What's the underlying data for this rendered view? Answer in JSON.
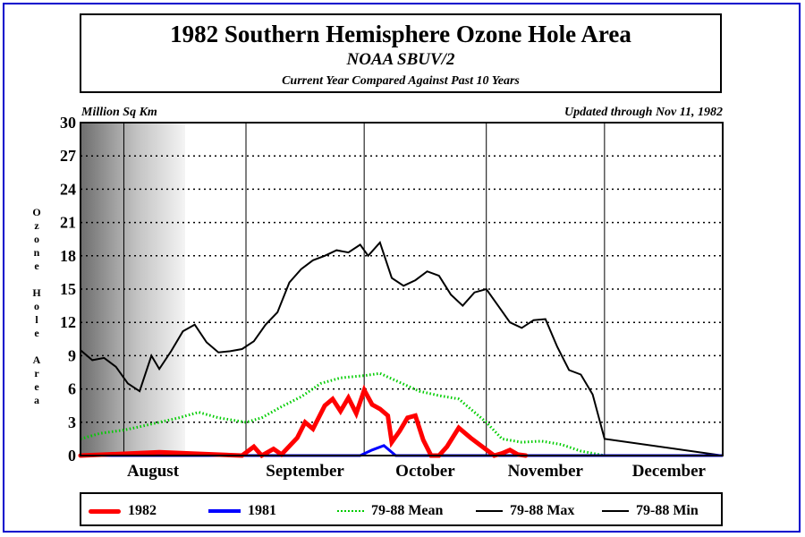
{
  "header": {
    "title": "1982 Southern Hemisphere Ozone Hole Area",
    "subtitle": "NOAA SBUV/2",
    "caption": "Current Year Compared Against Past 10 Years"
  },
  "units_label": "Million Sq Km",
  "updated_label": "Updated through Nov 11, 1982",
  "colors": {
    "frame": "#0000cc",
    "y1982": "#ff0000",
    "y1981": "#0000ff",
    "mean": "#00cc00",
    "max": "#000000",
    "min": "#000000"
  },
  "chart_data": {
    "type": "line",
    "title": "1982 Southern Hemisphere Ozone Hole Area",
    "subtitle": "NOAA SBUV/2",
    "ylabel": "Ozone Hole Area",
    "yunits": "Million Sq Km",
    "ylim": [
      0,
      30
    ],
    "yticks": [
      0,
      3,
      6,
      9,
      12,
      15,
      18,
      21,
      24,
      27,
      30
    ],
    "x_domain_days_note": "",
    "xlim": [
      "Jul 21",
      "Dec 31"
    ],
    "month_labels": [
      "August",
      "September",
      "October",
      "November",
      "December"
    ],
    "month_boundaries": [
      "Aug 1",
      "Sep 1",
      "Oct 1",
      "Nov 1",
      "Dec 1"
    ],
    "grid": true,
    "legend_position": "bottom",
    "series": [
      {
        "name": "1982",
        "style": "thick solid red",
        "x": [
          "Jul 21",
          "Aug 10",
          "Aug 31",
          "Sep 3",
          "Sep 5",
          "Sep 8",
          "Sep 10",
          "Sep 14",
          "Sep 16",
          "Sep 18",
          "Sep 21",
          "Sep 23",
          "Sep 25",
          "Sep 27",
          "Sep 29",
          "Oct 1",
          "Oct 3",
          "Oct 5",
          "Oct 7",
          "Oct 8",
          "Oct 10",
          "Oct 12",
          "Oct 14",
          "Oct 16",
          "Oct 18",
          "Oct 20",
          "Oct 22",
          "Oct 25",
          "Oct 28",
          "Oct 31",
          "Nov 3",
          "Nov 5",
          "Nov 7",
          "Nov 9",
          "Nov 11"
        ],
        "values": [
          0,
          0.3,
          0,
          0.8,
          0,
          0.6,
          0.1,
          1.6,
          3.0,
          2.4,
          4.5,
          5.1,
          4.0,
          5.2,
          3.8,
          5.9,
          4.6,
          4.2,
          3.6,
          1.2,
          2.2,
          3.4,
          3.6,
          1.4,
          0,
          0,
          0.8,
          2.5,
          1.6,
          0.8,
          0,
          0.2,
          0.5,
          0.1,
          0
        ]
      },
      {
        "name": "1981",
        "style": "thick solid blue",
        "x": [
          "Jul 21",
          "Sep 30",
          "Oct 3",
          "Oct 6",
          "Oct 9",
          "Dec 31"
        ],
        "values": [
          0,
          0,
          0.5,
          0.9,
          0,
          0
        ]
      },
      {
        "name": "79-88 Mean",
        "style": "dotted green",
        "x": [
          "Jul 21",
          "Jul 26",
          "Aug 1",
          "Aug 5",
          "Aug 10",
          "Aug 15",
          "Aug 20",
          "Aug 25",
          "Sep 1",
          "Sep 5",
          "Sep 10",
          "Sep 15",
          "Sep 20",
          "Sep 25",
          "Oct 1",
          "Oct 5",
          "Oct 10",
          "Oct 15",
          "Oct 20",
          "Oct 25",
          "Nov 1",
          "Nov 5",
          "Nov 10",
          "Nov 15",
          "Nov 20",
          "Nov 25",
          "Dec 1",
          "Dec 5",
          "Dec 31"
        ],
        "values": [
          1.5,
          2.0,
          2.3,
          2.6,
          3.0,
          3.4,
          3.9,
          3.4,
          3.0,
          3.4,
          4.4,
          5.3,
          6.5,
          7.0,
          7.2,
          7.4,
          6.6,
          5.8,
          5.4,
          5.1,
          3.0,
          1.5,
          1.2,
          1.3,
          1.0,
          0.4,
          0,
          0,
          0
        ]
      },
      {
        "name": "79-88 Max",
        "style": "solid black",
        "x": [
          "Jul 21",
          "Jul 24",
          "Jul 27",
          "Jul 30",
          "Aug 2",
          "Aug 5",
          "Aug 8",
          "Aug 10",
          "Aug 13",
          "Aug 16",
          "Aug 19",
          "Aug 22",
          "Aug 25",
          "Aug 28",
          "Aug 31",
          "Sep 3",
          "Sep 6",
          "Sep 9",
          "Sep 12",
          "Sep 15",
          "Sep 18",
          "Sep 21",
          "Sep 24",
          "Sep 27",
          "Sep 30",
          "Oct 2",
          "Oct 5",
          "Oct 8",
          "Oct 11",
          "Oct 14",
          "Oct 17",
          "Oct 20",
          "Oct 23",
          "Oct 26",
          "Oct 29",
          "Nov 1",
          "Nov 4",
          "Nov 7",
          "Nov 10",
          "Nov 13",
          "Nov 16",
          "Nov 19",
          "Nov 22",
          "Nov 25",
          "Nov 28",
          "Dec 1",
          "Dec 31"
        ],
        "values": [
          9.5,
          8.6,
          8.8,
          8.0,
          6.5,
          5.8,
          9.0,
          7.8,
          9.4,
          11.2,
          11.8,
          10.2,
          9.3,
          9.4,
          9.6,
          10.3,
          11.8,
          12.9,
          15.6,
          16.8,
          17.6,
          18.0,
          18.5,
          18.3,
          19.0,
          18.0,
          19.2,
          16.0,
          15.3,
          15.8,
          16.6,
          16.2,
          14.5,
          13.5,
          14.7,
          15.0,
          13.5,
          12.0,
          11.5,
          12.2,
          12.3,
          9.8,
          7.7,
          7.3,
          5.5,
          1.5,
          0
        ]
      },
      {
        "name": "79-88 Min",
        "style": "solid black",
        "x": [
          "Jul 21",
          "Nov 25",
          "Nov 28",
          "Dec 1",
          "Dec 31"
        ],
        "values": [
          0,
          0,
          0,
          0,
          0
        ]
      }
    ]
  },
  "legend": {
    "items": [
      {
        "label": "1982"
      },
      {
        "label": "1981"
      },
      {
        "label": "79-88 Mean"
      },
      {
        "label": "79-88 Max"
      },
      {
        "label": "79-88 Min"
      }
    ]
  }
}
